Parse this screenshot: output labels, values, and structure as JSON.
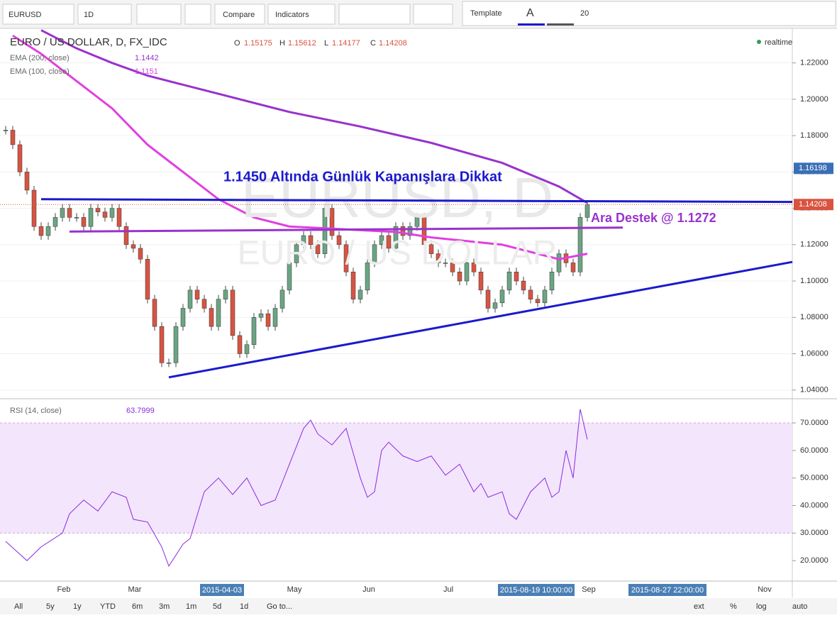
{
  "toolbar": {
    "symbol": "EURUSD",
    "interval": "1D",
    "compare": "Compare",
    "indicators": "Indicators",
    "template": "Template",
    "font_size": "20"
  },
  "legend": {
    "title": "EURO / US DOLLAR, D, FX_IDC",
    "o_label": "O",
    "open": "1.15175",
    "h_label": "H",
    "high": "1.15612",
    "l_label": "L",
    "low": "1.14177",
    "c_label": "C",
    "close": "1.14208",
    "realtime": "realtime",
    "ema200_name": "EMA (200, close)",
    "ema200_value": "1.1442",
    "ema100_name": "EMA (100, close)",
    "ema100_value": "1.1151",
    "rsi_name": "RSI (14, close)",
    "rsi_value": "63.7999"
  },
  "watermark": {
    "symbol": "EURUSD, D",
    "description": "EURO / US DOLLAR"
  },
  "annotations": {
    "headline": "1.1450 Altında Günlük Kapanışlara Dikkat",
    "support": "Ara Destek @ 1.1272"
  },
  "price_axis": {
    "ylim": [
      1.036,
      1.239
    ],
    "ticks": [
      {
        "value": 1.22,
        "label": "1.22000"
      },
      {
        "value": 1.2,
        "label": "1.20000"
      },
      {
        "value": 1.18,
        "label": "1.18000"
      },
      {
        "value": 1.16,
        "label": "1.16000"
      },
      {
        "value": 1.14,
        "label": "1.14000"
      },
      {
        "value": 1.12,
        "label": "1.12000"
      },
      {
        "value": 1.1,
        "label": "1.10000"
      },
      {
        "value": 1.08,
        "label": "1.08000"
      },
      {
        "value": 1.06,
        "label": "1.06000"
      },
      {
        "value": 1.04,
        "label": "1.04000"
      }
    ],
    "markers": [
      {
        "value": 1.16198,
        "label": "1.16198",
        "color": "#3a6fb5"
      },
      {
        "value": 1.14208,
        "label": "1.14208",
        "color": "#d9533f"
      }
    ]
  },
  "rsi_axis": {
    "ylim": [
      13.6,
      78
    ],
    "ticks": [
      {
        "value": 70,
        "label": "70.0000"
      },
      {
        "value": 60,
        "label": "60.0000"
      },
      {
        "value": 50,
        "label": "50.0000"
      },
      {
        "value": 40,
        "label": "40.0000"
      },
      {
        "value": 30,
        "label": "30.0000"
      },
      {
        "value": 20,
        "label": "20.0000"
      }
    ]
  },
  "time_axis": {
    "labels": [
      "Feb",
      "Mar",
      "May",
      "Jun",
      "Jul",
      "Sep",
      "Nov"
    ],
    "highlights": [
      "2015-04-03",
      "2015-08-19 10:00:00",
      "2015-08-27 22:00:00"
    ]
  },
  "candles": {
    "close": [
      1.183,
      1.175,
      1.16,
      1.15,
      1.13,
      1.125,
      1.13,
      1.135,
      1.14,
      1.135,
      1.135,
      1.13,
      1.14,
      1.138,
      1.135,
      1.14,
      1.13,
      1.12,
      1.118,
      1.112,
      1.09,
      1.075,
      1.055,
      1.055,
      1.075,
      1.085,
      1.095,
      1.09,
      1.085,
      1.075,
      1.09,
      1.095,
      1.07,
      1.06,
      1.065,
      1.08,
      1.082,
      1.075,
      1.085,
      1.095,
      1.11,
      1.12,
      1.125,
      1.12,
      1.115,
      1.14,
      1.125,
      1.12,
      1.105,
      1.09,
      1.095,
      1.11,
      1.12,
      1.125,
      1.118,
      1.13,
      1.125,
      1.13,
      1.135,
      1.12,
      1.115,
      1.11,
      1.11,
      1.105,
      1.1,
      1.11,
      1.105,
      1.095,
      1.085,
      1.088,
      1.095,
      1.105,
      1.1,
      1.095,
      1.09,
      1.088,
      1.095,
      1.105,
      1.115,
      1.11,
      1.105,
      1.135,
      1.142
    ],
    "up_color": "#6ba583",
    "down_color": "#d75442"
  },
  "ema200": {
    "color": "#9932cc",
    "x": [
      5,
      10,
      15,
      20,
      30,
      40,
      50,
      60,
      70,
      78,
      82
    ],
    "values": [
      1.238,
      1.228,
      1.22,
      1.213,
      1.203,
      1.193,
      1.185,
      1.176,
      1.165,
      1.152,
      1.143
    ]
  },
  "ema100": {
    "color": "#e040e0",
    "x": [
      1,
      5,
      10,
      15,
      20,
      25,
      30,
      35,
      40,
      45,
      50,
      55,
      60,
      65,
      70,
      75,
      78,
      82
    ],
    "values": [
      1.235,
      1.225,
      1.21,
      1.195,
      1.175,
      1.16,
      1.145,
      1.135,
      1.13,
      1.129,
      1.128,
      1.127,
      1.124,
      1.122,
      1.12,
      1.115,
      1.112,
      1.115
    ]
  },
  "rsi": {
    "color": "#8a2be2",
    "x": [
      0,
      3,
      5,
      8,
      9,
      11,
      13,
      15,
      17,
      18,
      20,
      22,
      23,
      25,
      26,
      28,
      30,
      32,
      34,
      36,
      38,
      40,
      42,
      43,
      44,
      46,
      48,
      50,
      51,
      52,
      53,
      54,
      56,
      58,
      60,
      62,
      64,
      66,
      67,
      68,
      70,
      71,
      72,
      74,
      76,
      77,
      78,
      79,
      80,
      81,
      82
    ],
    "values": [
      27,
      20,
      25,
      30,
      37,
      42,
      38,
      45,
      43,
      35,
      34,
      25,
      18,
      26,
      28,
      45,
      50,
      44,
      50,
      40,
      42,
      55,
      68,
      71,
      66,
      62,
      68,
      50,
      43,
      45,
      60,
      63,
      58,
      56,
      58,
      51,
      55,
      45,
      48,
      43,
      45,
      37,
      35,
      45,
      50,
      43,
      45,
      60,
      50,
      75,
      64
    ],
    "band": [
      30,
      70
    ]
  },
  "lines": [
    {
      "color": "#1a1acc",
      "x": [
        5,
        111
      ],
      "values": [
        1.145,
        1.1435
      ]
    },
    {
      "color": "#9932cc",
      "x": [
        9,
        87
      ],
      "values": [
        1.1272,
        1.1294
      ]
    },
    {
      "color": "#1a1acc",
      "x": [
        23,
        111
      ],
      "values": [
        1.047,
        1.1105
      ]
    }
  ],
  "bottom_bar": {
    "ranges": [
      "All",
      "5y",
      "1y",
      "YTD",
      "6m",
      "3m",
      "1m",
      "5d",
      "1d",
      "Go to..."
    ],
    "options": [
      "ext",
      "%",
      "log",
      "auto"
    ]
  }
}
